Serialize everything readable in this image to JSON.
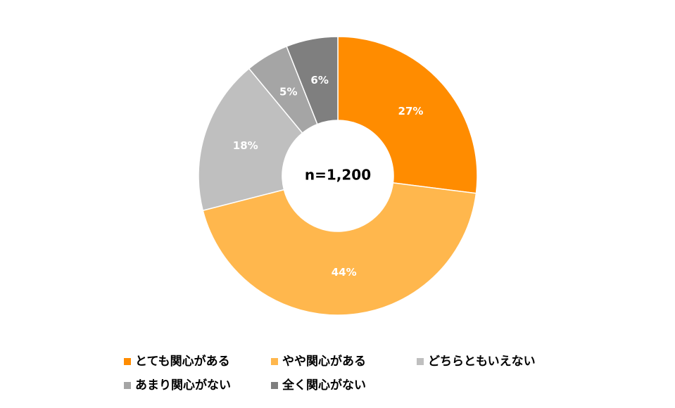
{
  "chart_data": {
    "type": "donut",
    "center_text": "n=1,200",
    "categories": [
      "とても関心がある",
      "やや関心がある",
      "どちらともいえない",
      "あまり関心がない",
      "全く関心がない"
    ],
    "values": [
      27,
      44,
      18,
      5,
      6
    ],
    "value_labels": [
      "27%",
      "44%",
      "18%",
      "5%",
      "6%"
    ],
    "colors": [
      "#FF8C00",
      "#FFB74D",
      "#BFBFBF",
      "#A5A5A5",
      "#7F7F7F"
    ],
    "legend": "bottom"
  }
}
